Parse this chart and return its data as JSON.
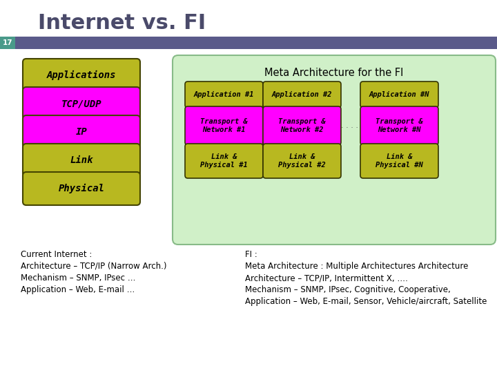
{
  "title": "Internet vs. FI",
  "slide_number": "17",
  "title_color": "#4a4a6a",
  "bar_color": "#5a5a8a",
  "teal_color": "#4a9a8a",
  "background": "#ffffff",
  "left_stack": [
    {
      "label": "Applications",
      "color": "#b8b820"
    },
    {
      "label": "TCP/UDP",
      "color": "#ff00ff"
    },
    {
      "label": "IP",
      "color": "#ff00ff"
    },
    {
      "label": "Link",
      "color": "#b8b820"
    },
    {
      "label": "Physical",
      "color": "#b8b820"
    }
  ],
  "right_box_bg": "#d0f0c8",
  "right_box_border": "#88bb88",
  "right_title": "Meta Architecture for the FI",
  "right_cols": [
    "Application #1",
    "Application #2",
    "Application #N"
  ],
  "right_row1": [
    "Transport &\nNetwork #1",
    "Transport &\nNetwork #2",
    "Transport &\nNetwork #N"
  ],
  "right_row2": [
    "Link &\nPhysical #1",
    "Link &\nPhysical #2",
    "Link &\nPhysical #N"
  ],
  "app_color": "#b8b820",
  "transport_color": "#ff00ff",
  "link_color": "#b8b820",
  "cell_border": "#333300",
  "dots_color": "#555555",
  "bottom_left_lines": [
    "Current Internet :",
    "Architecture – TCP/IP (Narrow Arch.)",
    "Mechanism – SNMP, IPsec …",
    "Application – Web, E-mail …"
  ],
  "bottom_right_lines": [
    "FI :",
    "Meta Architecture : Multiple Architectures Architecture",
    "Architecture – TCP/IP, Intermittent X, ….",
    "Mechanism – SNMP, IPsec, Cognitive, Cooperative,",
    "Application – Web, E-mail, Sensor, Vehicle/aircraft, Satellite"
  ]
}
